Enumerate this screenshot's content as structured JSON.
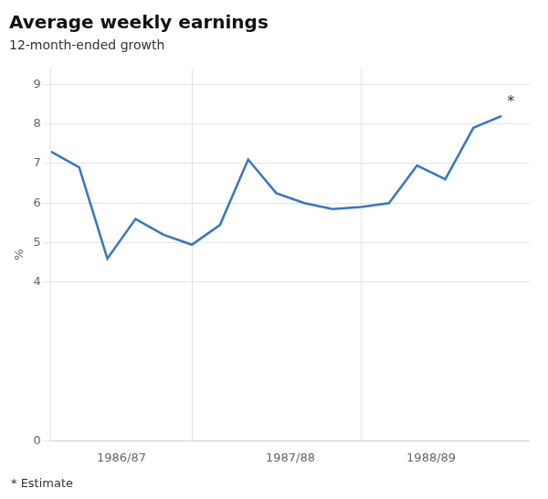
{
  "chart_data": {
    "type": "line",
    "title": "Average weekly earnings",
    "subtitle": "12-month-ended growth",
    "ylabel": "%",
    "note": "* Estimate",
    "x": [
      0,
      1,
      2,
      3,
      4,
      5,
      6,
      7,
      8,
      9,
      10,
      11,
      12,
      13,
      14,
      15,
      16
    ],
    "values": [
      7.3,
      6.9,
      4.6,
      5.6,
      5.2,
      4.95,
      5.45,
      7.1,
      6.25,
      6.0,
      5.85,
      5.9,
      6.0,
      6.95,
      6.6,
      7.9,
      8.2
    ],
    "color": "#3377cc",
    "xlim": [
      0,
      17
    ],
    "xticks": [
      {
        "value": 2.5,
        "label": "1986/87"
      },
      {
        "value": 8.5,
        "label": "1987/88"
      },
      {
        "value": 13.5,
        "label": "1988/89"
      }
    ],
    "dividers": [
      5,
      11
    ],
    "ylim": [
      0,
      9.4
    ],
    "yticks": [
      0,
      4,
      5,
      6,
      7,
      8,
      9
    ],
    "grid": true,
    "annotations": [
      {
        "text": "*",
        "x": 16.2,
        "y": 8.55
      }
    ]
  }
}
